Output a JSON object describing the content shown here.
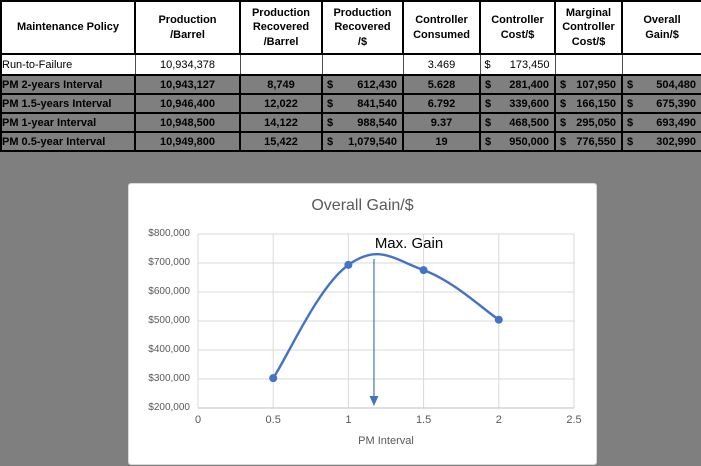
{
  "background_color": "#7F7F7F",
  "table": {
    "headers": [
      "Maintenance Policy",
      "Production\n/Barrel",
      "Production\nRecovered\n/Barrel",
      "Production\nRecovered\n/$",
      "Controller\nConsumed",
      "Controller\nCost/$",
      "Marginal\nController\nCost/$",
      "Overall\nGain/$"
    ],
    "rows": [
      {
        "policy": "Run-to-Failure",
        "production": "10,934,378",
        "rec_bbl": "",
        "rec_s": "",
        "rec": "",
        "consumed": "3.469",
        "cost_s": "$",
        "cost": "173,450",
        "marg_s": "",
        "marg": "",
        "gain_s": "",
        "gain": ""
      },
      {
        "policy": "PM 2-years Interval",
        "production": "10,943,127",
        "rec_bbl": "8,749",
        "rec_s": "$",
        "rec": "612,430",
        "consumed": "5.628",
        "cost_s": "$",
        "cost": "281,400",
        "marg_s": "$",
        "marg": "107,950",
        "gain_s": "$",
        "gain": "504,480"
      },
      {
        "policy": "PM 1.5-years Interval",
        "production": "10,946,400",
        "rec_bbl": "12,022",
        "rec_s": "$",
        "rec": "841,540",
        "consumed": "6.792",
        "cost_s": "$",
        "cost": "339,600",
        "marg_s": "$",
        "marg": "166,150",
        "gain_s": "$",
        "gain": "675,390"
      },
      {
        "policy": "PM 1-year Interval",
        "production": "10,948,500",
        "rec_bbl": "14,122",
        "rec_s": "$",
        "rec": "988,540",
        "consumed": "9.37",
        "cost_s": "$",
        "cost": "468,500",
        "marg_s": "$",
        "marg": "295,050",
        "gain_s": "$",
        "gain": "693,490"
      },
      {
        "policy": "PM 0.5-year Interval",
        "production": "10,949,800",
        "rec_bbl": "15,422",
        "rec_s": "$",
        "rec": "1,079,540",
        "consumed": "19",
        "cost_s": "$",
        "cost": "950,000",
        "marg_s": "$",
        "marg": "776,550",
        "gain_s": "$",
        "gain": "302,990"
      }
    ]
  },
  "chart_data": {
    "type": "line",
    "title": "Overall Gain/$",
    "xlabel": "PM Interval",
    "ylabel": "",
    "series_name": "Overall Gain/$",
    "x": [
      0.5,
      1,
      1.5,
      2
    ],
    "y": [
      302990,
      693490,
      675390,
      504480
    ],
    "xlim": [
      0,
      2.5
    ],
    "ylim": [
      200000,
      800000
    ],
    "xticks": [
      0,
      0.5,
      1,
      1.5,
      2,
      2.5
    ],
    "xtick_labels": [
      "0",
      "0.5",
      "1",
      "1.5",
      "2",
      "2.5"
    ],
    "yticks": [
      200000,
      300000,
      400000,
      500000,
      600000,
      700000,
      800000
    ],
    "ytick_labels": [
      "$200,000",
      "$300,000",
      "$400,000",
      "$500,000",
      "$600,000",
      "$700,000",
      "$800,000"
    ],
    "grid": true,
    "smooth": true,
    "marker": "circle",
    "annotation": "Max. Gain",
    "annotation_x": 1.17,
    "line_color": "#4472C4",
    "grid_color": "#D9D9D9",
    "axis_line_color": "#BFBFBF",
    "axis_text_color": "#595959"
  }
}
